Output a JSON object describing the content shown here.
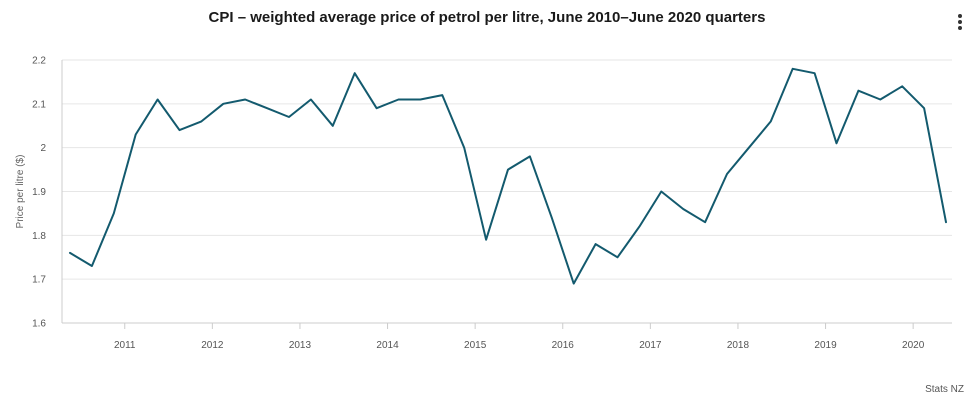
{
  "chart_data": {
    "type": "line",
    "title": "CPI – weighted average price of petrol per litre, June 2010–June 2020 quarters",
    "xlabel": "",
    "ylabel": "Price per litre ($)",
    "ylim": [
      1.6,
      2.2
    ],
    "y_ticks": [
      1.6,
      1.7,
      1.8,
      1.9,
      2,
      2.1,
      2.2
    ],
    "y_tick_labels": [
      "1.6",
      "1.7",
      "1.8",
      "1.9",
      "2",
      "2.1",
      "2.2"
    ],
    "x_tick_labels": [
      "2011",
      "2012",
      "2013",
      "2014",
      "2015",
      "2016",
      "2017",
      "2018",
      "2019",
      "2020"
    ],
    "grid": true,
    "line_color": "#135a6e",
    "series": [
      {
        "name": "Weighted average price of petrol per litre",
        "x": [
          "Jun 2010",
          "Sep 2010",
          "Dec 2010",
          "Mar 2011",
          "Jun 2011",
          "Sep 2011",
          "Dec 2011",
          "Mar 2012",
          "Jun 2012",
          "Sep 2012",
          "Dec 2012",
          "Mar 2013",
          "Jun 2013",
          "Sep 2013",
          "Dec 2013",
          "Mar 2014",
          "Jun 2014",
          "Sep 2014",
          "Dec 2014",
          "Mar 2015",
          "Jun 2015",
          "Sep 2015",
          "Dec 2015",
          "Mar 2016",
          "Jun 2016",
          "Sep 2016",
          "Dec 2016",
          "Mar 2017",
          "Jun 2017",
          "Sep 2017",
          "Dec 2017",
          "Mar 2018",
          "Jun 2018",
          "Sep 2018",
          "Dec 2018",
          "Mar 2019",
          "Jun 2019",
          "Sep 2019",
          "Dec 2019",
          "Mar 2020",
          "Jun 2020"
        ],
        "values": [
          1.76,
          1.73,
          1.85,
          2.03,
          2.11,
          2.04,
          2.06,
          2.1,
          2.11,
          2.09,
          2.07,
          2.11,
          2.05,
          2.17,
          2.09,
          2.11,
          2.11,
          2.12,
          2.0,
          1.79,
          1.95,
          1.98,
          1.84,
          1.69,
          1.78,
          1.75,
          1.82,
          1.9,
          1.86,
          1.83,
          1.94,
          2.0,
          2.06,
          2.18,
          2.17,
          2.01,
          2.13,
          2.11,
          2.14,
          2.09,
          1.83
        ]
      }
    ]
  },
  "credit": "Stats NZ",
  "menu_icon": "kebab-menu-icon"
}
